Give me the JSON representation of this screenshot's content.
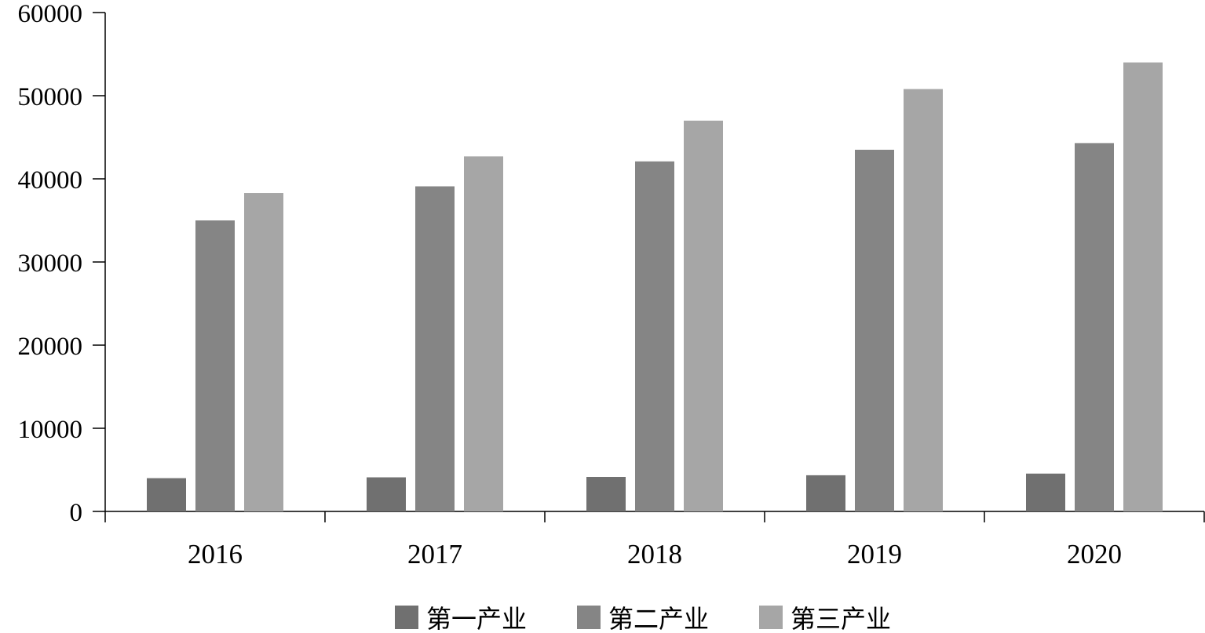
{
  "chart_data": {
    "type": "bar",
    "title": "",
    "xlabel": "",
    "ylabel": "",
    "categories": [
      "2016",
      "2017",
      "2018",
      "2019",
      "2020"
    ],
    "series": [
      {
        "name": "第一产业",
        "color": "#707070",
        "values": [
          4000,
          4100,
          4150,
          4350,
          4550
        ]
      },
      {
        "name": "第二产业",
        "color": "#858585",
        "values": [
          35000,
          39100,
          42100,
          43500,
          44300
        ]
      },
      {
        "name": "第三产业",
        "color": "#a6a6a6",
        "values": [
          38300,
          42700,
          47000,
          50800,
          54000
        ]
      }
    ],
    "ylim": [
      0,
      60000
    ],
    "yticks": [
      "0",
      "10000",
      "20000",
      "30000",
      "40000",
      "50000",
      "60000"
    ],
    "grid": false,
    "legend_position": "bottom-center"
  }
}
